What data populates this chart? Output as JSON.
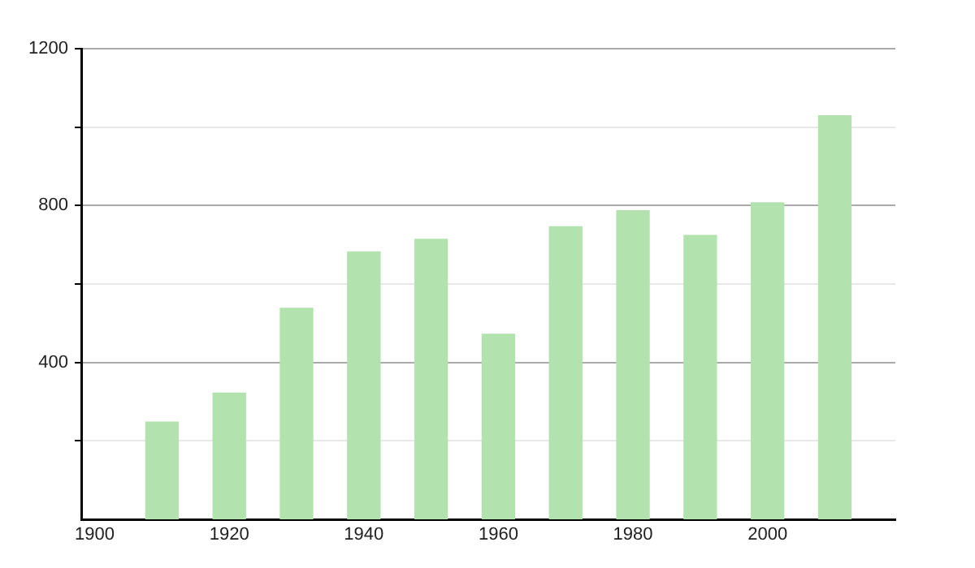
{
  "chart_data": {
    "type": "bar",
    "x": [
      1910,
      1920,
      1930,
      1940,
      1950,
      1960,
      1970,
      1980,
      1990,
      2000,
      2010
    ],
    "values": [
      248,
      322,
      538,
      682,
      714,
      472,
      746,
      787,
      724,
      807,
      1029
    ],
    "color": "#b2e3ae",
    "xlim": [
      1898,
      2019
    ],
    "xticks": [
      1900,
      1920,
      1940,
      1960,
      1980,
      2000
    ],
    "ylim": [
      0,
      1200
    ],
    "yticks": [
      {
        "value": 200,
        "label": null
      },
      400,
      {
        "value": 600,
        "label": null
      },
      800,
      {
        "value": 1000,
        "label": null
      },
      1200
    ],
    "grid": "y",
    "legend": false
  }
}
